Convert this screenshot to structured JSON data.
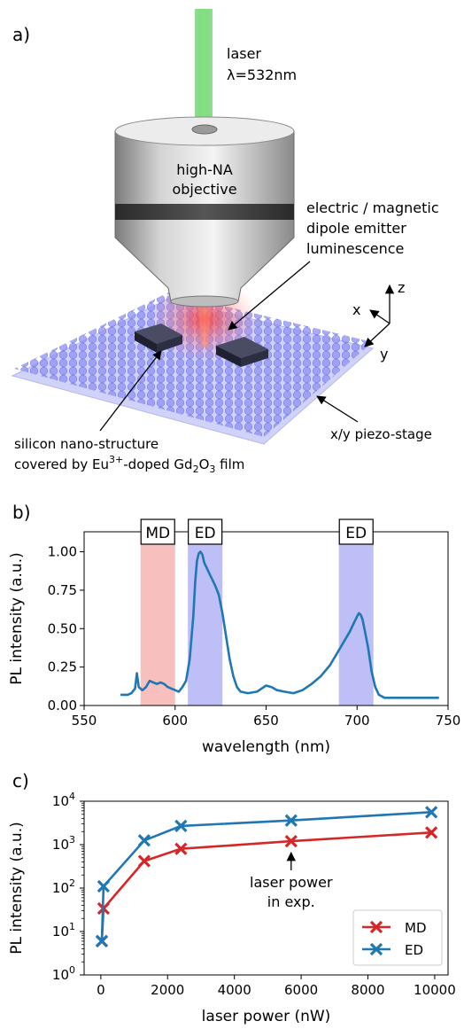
{
  "panel_a": {
    "label": "a)",
    "laser_label": "laser",
    "laser_wavelength": "λ=532nm",
    "objective_label_1": "high-NA",
    "objective_label_2": "objective",
    "emitter_label_1": "electric / magnetic",
    "emitter_label_2": "dipole emitter",
    "emitter_label_3": "luminescence",
    "axis_z": "z",
    "axis_x": "x",
    "axis_y": "y",
    "structure_label_1": "silicon nano-structure",
    "structure_label_2_pre": "covered by Eu",
    "structure_label_2_sup": "3+",
    "structure_label_2_mid": "-doped Gd",
    "structure_label_2_sub1": "2",
    "structure_label_2_o": "O",
    "structure_label_2_sub2": "3",
    "structure_label_2_post": " film",
    "stage_label": "x/y piezo-stage",
    "colors": {
      "laser": "#3cc23c",
      "glow": "#ff3a3a",
      "film": "#6f74f0",
      "block": "#2f3142"
    }
  },
  "chart_data": [
    {
      "panel_label": "b)",
      "type": "line",
      "xlabel": "wavelength (nm)",
      "ylabel": "PL intensity (a.u.)",
      "xlim": [
        550,
        750
      ],
      "ylim": [
        0,
        1.13
      ],
      "xticks": [
        550,
        600,
        650,
        700,
        750
      ],
      "yticks": [
        0.0,
        0.25,
        0.5,
        0.75,
        1.0
      ],
      "bands": [
        {
          "label": "MD",
          "range": [
            581,
            600
          ],
          "color": "#f28b8b"
        },
        {
          "label": "ED",
          "range": [
            607,
            626
          ],
          "color": "#8b8bf0"
        },
        {
          "label": "ED",
          "range": [
            690,
            709
          ],
          "color": "#8b8bf0"
        }
      ],
      "series": [
        {
          "color": "#1f77b4",
          "x": [
            570,
            574,
            576,
            578,
            579,
            580,
            582,
            584,
            586,
            588,
            590,
            592,
            594,
            596,
            598,
            600,
            602,
            604,
            606,
            608,
            610,
            611,
            612,
            613,
            614,
            615,
            616,
            618,
            620,
            622,
            624,
            626,
            628,
            630,
            632,
            634,
            636,
            640,
            645,
            650,
            653,
            656,
            660,
            665,
            670,
            675,
            680,
            685,
            688,
            691,
            694,
            696,
            698,
            700,
            701,
            702,
            703,
            704,
            706,
            708,
            710,
            712,
            715,
            720,
            730,
            740,
            745
          ],
          "y": [
            0.07,
            0.07,
            0.08,
            0.11,
            0.21,
            0.12,
            0.1,
            0.12,
            0.16,
            0.15,
            0.14,
            0.15,
            0.14,
            0.12,
            0.11,
            0.1,
            0.09,
            0.12,
            0.16,
            0.3,
            0.58,
            0.8,
            0.94,
            0.99,
            1.0,
            0.98,
            0.93,
            0.88,
            0.83,
            0.78,
            0.72,
            0.6,
            0.45,
            0.3,
            0.19,
            0.12,
            0.09,
            0.08,
            0.09,
            0.13,
            0.12,
            0.1,
            0.09,
            0.08,
            0.1,
            0.14,
            0.19,
            0.26,
            0.32,
            0.38,
            0.44,
            0.48,
            0.53,
            0.58,
            0.6,
            0.59,
            0.56,
            0.5,
            0.38,
            0.22,
            0.12,
            0.07,
            0.05,
            0.05,
            0.05,
            0.05,
            0.05
          ]
        }
      ]
    },
    {
      "panel_label": "c)",
      "type": "line",
      "xlabel": "laser power (nW)",
      "ylabel": "PL intensity (a.u.)",
      "xlim": [
        -500,
        10400
      ],
      "ylim_log10": [
        0,
        4
      ],
      "yscale": "log",
      "xticks": [
        0,
        2000,
        4000,
        6000,
        8000,
        10000
      ],
      "yticks": [
        {
          "base": "10",
          "exp": "0"
        },
        {
          "base": "10",
          "exp": "1"
        },
        {
          "base": "10",
          "exp": "2"
        },
        {
          "base": "10",
          "exp": "3"
        },
        {
          "base": "10",
          "exp": "4"
        }
      ],
      "annotation": {
        "line1": "laser power",
        "line2": "in exp.",
        "x": 5700
      },
      "legend_position": "lower-right",
      "series": [
        {
          "name": "MD",
          "color": "#d62728",
          "x": [
            30,
            80,
            1300,
            2400,
            5700,
            9900
          ],
          "y": [
            6,
            34,
            420,
            800,
            1200,
            1900
          ]
        },
        {
          "name": "ED",
          "color": "#1f77b4",
          "x": [
            30,
            80,
            1300,
            2400,
            5700,
            9900
          ],
          "y": [
            6,
            110,
            1250,
            2700,
            3600,
            5600
          ]
        }
      ]
    }
  ]
}
